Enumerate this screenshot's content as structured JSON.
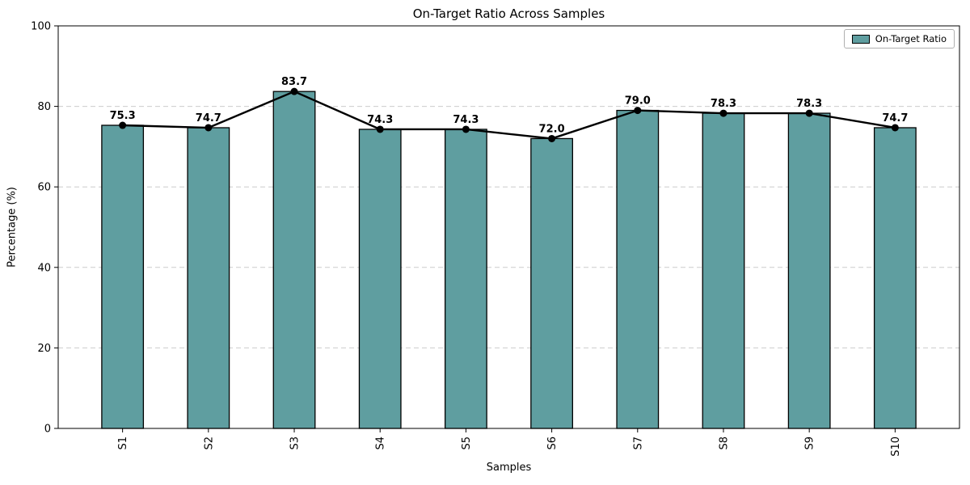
{
  "chart_data": {
    "type": "bar",
    "overlay": "line-with-markers",
    "title": "On-Target Ratio Across Samples",
    "xlabel": "Samples",
    "ylabel": "Percentage (%)",
    "categories": [
      "S1",
      "S2",
      "S3",
      "S4",
      "S5",
      "S6",
      "S7",
      "S8",
      "S9",
      "S10"
    ],
    "values": [
      75.3,
      74.7,
      83.7,
      74.3,
      74.3,
      72.0,
      79.0,
      78.3,
      78.3,
      74.7
    ],
    "value_label_decimals": 1,
    "ylim": [
      0,
      100
    ],
    "yticks": [
      0,
      20,
      40,
      60,
      80,
      100
    ],
    "grid": "horizontal-dashed",
    "x_tick_rotation": -90,
    "legend": {
      "position": "upper-right",
      "label": "On-Target Ratio"
    },
    "colors": {
      "bar_fill": "#5f9ea0",
      "bar_edge": "#000000",
      "line": "#000000",
      "marker": "#000000",
      "grid": "#cccccc",
      "spine": "#000000",
      "text": "#000000"
    }
  }
}
